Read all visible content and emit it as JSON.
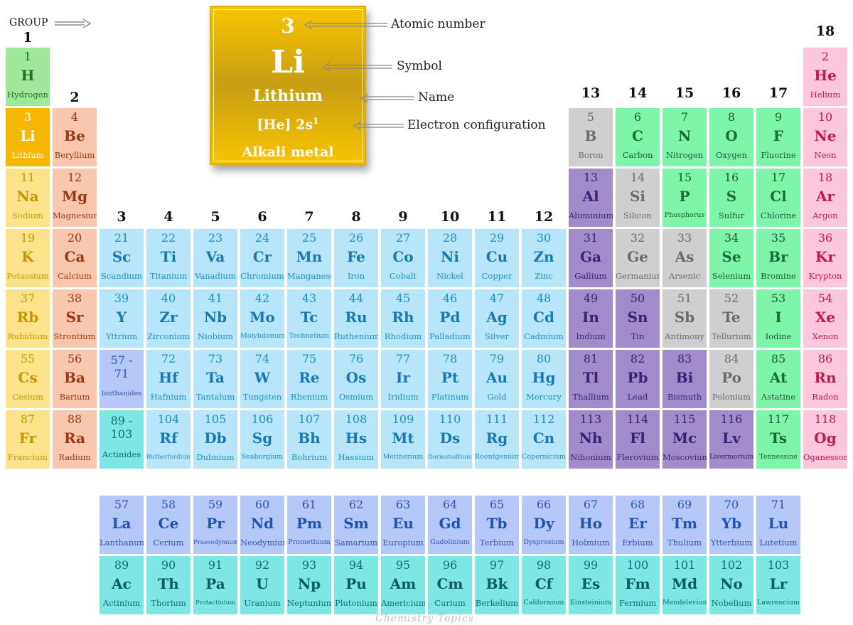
{
  "header": {
    "group_word": "GROUP",
    "groups": [
      "1",
      "2",
      "3",
      "4",
      "5",
      "6",
      "7",
      "8",
      "9",
      "10",
      "11",
      "12",
      "13",
      "14",
      "15",
      "16",
      "17",
      "18"
    ]
  },
  "legend": {
    "number": "3",
    "symbol": "Li",
    "name": "Lithium",
    "config_base": "[He] 2s",
    "config_sup": "1",
    "category": "Alkali metal",
    "callouts": {
      "atomic_number": "Atomic number",
      "symbol": "Symbol",
      "name": "Name",
      "electron_configuration": "Electron configuration"
    }
  },
  "watermark": "Chemistry Topics",
  "elements": [
    [
      "1",
      "H",
      "Hydrogen",
      1,
      1,
      "hydrogen"
    ],
    [
      "2",
      "He",
      "Helium",
      18,
      1,
      "noble"
    ],
    [
      "3",
      "Li",
      "Lithium",
      1,
      2,
      "lith-hl"
    ],
    [
      "4",
      "Be",
      "Beryllium",
      2,
      2,
      "alkaline"
    ],
    [
      "5",
      "B",
      "Boron",
      13,
      2,
      "metalloid"
    ],
    [
      "6",
      "C",
      "Carbon",
      14,
      2,
      "nonmetal"
    ],
    [
      "7",
      "N",
      "Nitrogen",
      15,
      2,
      "nonmetal"
    ],
    [
      "8",
      "O",
      "Oxygen",
      16,
      2,
      "nonmetal"
    ],
    [
      "9",
      "F",
      "Fluorine",
      17,
      2,
      "nonmetal"
    ],
    [
      "10",
      "Ne",
      "Neon",
      18,
      2,
      "noble"
    ],
    [
      "11",
      "Na",
      "Sodium",
      1,
      3,
      "alkali"
    ],
    [
      "12",
      "Mg",
      "Magnesium",
      2,
      3,
      "alkaline"
    ],
    [
      "13",
      "Al",
      "Aluminium",
      13,
      3,
      "post"
    ],
    [
      "14",
      "Si",
      "Silicon",
      14,
      3,
      "metalloid"
    ],
    [
      "15",
      "P",
      "Phosphorus",
      15,
      3,
      "nonmetal"
    ],
    [
      "16",
      "S",
      "Sulfur",
      16,
      3,
      "nonmetal"
    ],
    [
      "17",
      "Cl",
      "Chlorine",
      17,
      3,
      "nonmetal"
    ],
    [
      "18",
      "Ar",
      "Argon",
      18,
      3,
      "noble"
    ],
    [
      "19",
      "K",
      "Potassium",
      1,
      4,
      "alkali"
    ],
    [
      "20",
      "Ca",
      "Calcium",
      2,
      4,
      "alkaline"
    ],
    [
      "21",
      "Sc",
      "Scandium",
      3,
      4,
      "transition"
    ],
    [
      "22",
      "Ti",
      "Titanium",
      4,
      4,
      "transition"
    ],
    [
      "23",
      "Va",
      "Vanadium",
      5,
      4,
      "transition"
    ],
    [
      "24",
      "Cr",
      "Chromium",
      6,
      4,
      "transition"
    ],
    [
      "25",
      "Mn",
      "Manganese",
      7,
      4,
      "transition"
    ],
    [
      "26",
      "Fe",
      "Iron",
      8,
      4,
      "transition"
    ],
    [
      "27",
      "Co",
      "Cobalt",
      9,
      4,
      "transition"
    ],
    [
      "28",
      "Ni",
      "Nickel",
      10,
      4,
      "transition"
    ],
    [
      "29",
      "Cu",
      "Copper",
      11,
      4,
      "transition"
    ],
    [
      "30",
      "Zn",
      "Zinc",
      12,
      4,
      "transition"
    ],
    [
      "31",
      "Ga",
      "Gallium",
      13,
      4,
      "post"
    ],
    [
      "32",
      "Ge",
      "Germanium",
      14,
      4,
      "metalloid"
    ],
    [
      "33",
      "As",
      "Arsenic",
      15,
      4,
      "metalloid"
    ],
    [
      "34",
      "Se",
      "Selenium",
      16,
      4,
      "nonmetal"
    ],
    [
      "35",
      "Br",
      "Bromine",
      17,
      4,
      "nonmetal"
    ],
    [
      "36",
      "Kr",
      "Krypton",
      18,
      4,
      "noble"
    ],
    [
      "37",
      "Rb",
      "Rubidium",
      1,
      5,
      "alkali"
    ],
    [
      "38",
      "Sr",
      "Strontium",
      2,
      5,
      "alkaline"
    ],
    [
      "39",
      "Y",
      "Yttrium",
      3,
      5,
      "transition"
    ],
    [
      "40",
      "Zr",
      "Zirconium",
      4,
      5,
      "transition"
    ],
    [
      "41",
      "Nb",
      "Niobium",
      5,
      5,
      "transition"
    ],
    [
      "42",
      "Mo",
      "Molybdenum",
      6,
      5,
      "transition"
    ],
    [
      "43",
      "Tc",
      "Technetium",
      7,
      5,
      "transition"
    ],
    [
      "44",
      "Ru",
      "Ruthenium",
      8,
      5,
      "transition"
    ],
    [
      "45",
      "Rh",
      "Rhodium",
      9,
      5,
      "transition"
    ],
    [
      "46",
      "Pd",
      "Palladium",
      10,
      5,
      "transition"
    ],
    [
      "47",
      "Ag",
      "Silver",
      11,
      5,
      "transition"
    ],
    [
      "48",
      "Cd",
      "Cadmium",
      12,
      5,
      "transition"
    ],
    [
      "49",
      "In",
      "Indium",
      13,
      5,
      "post"
    ],
    [
      "50",
      "Sn",
      "Tin",
      14,
      5,
      "post"
    ],
    [
      "51",
      "Sb",
      "Antimony",
      15,
      5,
      "metalloid"
    ],
    [
      "52",
      "Te",
      "Tellurium",
      16,
      5,
      "metalloid"
    ],
    [
      "53",
      "I",
      "Iodine",
      17,
      5,
      "nonmetal"
    ],
    [
      "54",
      "Xe",
      "Xenon",
      18,
      5,
      "noble"
    ],
    [
      "55",
      "Cs",
      "Cesium",
      1,
      6,
      "alkali"
    ],
    [
      "56",
      "Ba",
      "Barium",
      2,
      6,
      "alkaline"
    ],
    [
      "57 - 71",
      "",
      "lanthanides",
      3,
      6,
      "lanthanide"
    ],
    [
      "72",
      "Hf",
      "Hafnium",
      4,
      6,
      "transition"
    ],
    [
      "73",
      "Ta",
      "Tantalum",
      5,
      6,
      "transition"
    ],
    [
      "74",
      "W",
      "Tungsten",
      6,
      6,
      "transition"
    ],
    [
      "75",
      "Re",
      "Rhenium",
      7,
      6,
      "transition"
    ],
    [
      "76",
      "Os",
      "Osmium",
      8,
      6,
      "transition"
    ],
    [
      "77",
      "Ir",
      "Iridium",
      9,
      6,
      "transition"
    ],
    [
      "78",
      "Pt",
      "Platinum",
      10,
      6,
      "transition"
    ],
    [
      "79",
      "Au",
      "Gold",
      11,
      6,
      "transition"
    ],
    [
      "80",
      "Hg",
      "Mercury",
      12,
      6,
      "transition"
    ],
    [
      "81",
      "Tl",
      "Thallium",
      13,
      6,
      "post"
    ],
    [
      "82",
      "Pb",
      "Lead",
      14,
      6,
      "post"
    ],
    [
      "83",
      "Bi",
      "Bismuth",
      15,
      6,
      "post"
    ],
    [
      "84",
      "Po",
      "Polonium",
      16,
      6,
      "metalloid"
    ],
    [
      "85",
      "At",
      "Astatine",
      17,
      6,
      "nonmetal"
    ],
    [
      "86",
      "Rn",
      "Radon",
      18,
      6,
      "noble"
    ],
    [
      "87",
      "Fr",
      "Francium",
      1,
      7,
      "alkali"
    ],
    [
      "88",
      "Ra",
      "Radium",
      2,
      7,
      "alkaline"
    ],
    [
      "89 - 103",
      "",
      "Actinides",
      3,
      7,
      "actinide"
    ],
    [
      "104",
      "Rf",
      "Rutherfordium",
      4,
      7,
      "transition"
    ],
    [
      "105",
      "Db",
      "Dubnium",
      5,
      7,
      "transition"
    ],
    [
      "106",
      "Sg",
      "Seaborgium",
      6,
      7,
      "transition"
    ],
    [
      "107",
      "Bh",
      "Bohrium",
      7,
      7,
      "transition"
    ],
    [
      "108",
      "Hs",
      "Hassium",
      8,
      7,
      "transition"
    ],
    [
      "109",
      "Mt",
      "Meitnerium",
      9,
      7,
      "transition"
    ],
    [
      "110",
      "Ds",
      "Darmstadtium",
      10,
      7,
      "transition"
    ],
    [
      "111",
      "Rg",
      "Roentgenium",
      11,
      7,
      "transition"
    ],
    [
      "112",
      "Cn",
      "Copernicium",
      12,
      7,
      "transition"
    ],
    [
      "113",
      "Nh",
      "Nihonium",
      13,
      7,
      "post"
    ],
    [
      "114",
      "Fl",
      "Flerovium",
      14,
      7,
      "post"
    ],
    [
      "115",
      "Mc",
      "Moscovium",
      15,
      7,
      "post"
    ],
    [
      "116",
      "Lv",
      "Livermorium",
      16,
      7,
      "post"
    ],
    [
      "117",
      "Ts",
      "Tennessine",
      17,
      7,
      "nonmetal"
    ],
    [
      "118",
      "Og",
      "Oganesson",
      18,
      7,
      "noble"
    ],
    [
      "57",
      "La",
      "Lanthanum",
      3,
      9,
      "lanthanide"
    ],
    [
      "58",
      "Ce",
      "Cerium",
      4,
      9,
      "lanthanide"
    ],
    [
      "59",
      "Pr",
      "Praseodymium",
      5,
      9,
      "lanthanide"
    ],
    [
      "60",
      "Nd",
      "Neodymium",
      6,
      9,
      "lanthanide"
    ],
    [
      "61",
      "Pm",
      "Promethium",
      7,
      9,
      "lanthanide"
    ],
    [
      "62",
      "Sm",
      "Samarium",
      8,
      9,
      "lanthanide"
    ],
    [
      "63",
      "Eu",
      "Europium",
      9,
      9,
      "lanthanide"
    ],
    [
      "64",
      "Gd",
      "Gadolinium",
      10,
      9,
      "lanthanide"
    ],
    [
      "65",
      "Tb",
      "Terbium",
      11,
      9,
      "lanthanide"
    ],
    [
      "66",
      "Dy",
      "Dysprosium",
      12,
      9,
      "lanthanide"
    ],
    [
      "67",
      "Ho",
      "Holmium",
      13,
      9,
      "lanthanide"
    ],
    [
      "68",
      "Er",
      "Erbium",
      14,
      9,
      "lanthanide"
    ],
    [
      "69",
      "Tm",
      "Thulium",
      15,
      9,
      "lanthanide"
    ],
    [
      "70",
      "Yb",
      "Ytterbium",
      16,
      9,
      "lanthanide"
    ],
    [
      "71",
      "Lu",
      "Lutetium",
      17,
      9,
      "lanthanide"
    ],
    [
      "89",
      "Ac",
      "Actinium",
      3,
      10,
      "actinide"
    ],
    [
      "90",
      "Th",
      "Thorium",
      4,
      10,
      "actinide"
    ],
    [
      "91",
      "Pa",
      "Protactinium",
      5,
      10,
      "actinide"
    ],
    [
      "92",
      "U",
      "Uranium",
      6,
      10,
      "actinide"
    ],
    [
      "93",
      "Np",
      "Neptunium",
      7,
      10,
      "actinide"
    ],
    [
      "94",
      "Pu",
      "Plutonium",
      8,
      10,
      "actinide"
    ],
    [
      "95",
      "Am",
      "Americium",
      9,
      10,
      "actinide"
    ],
    [
      "96",
      "Cm",
      "Curium",
      10,
      10,
      "actinide"
    ],
    [
      "97",
      "Bk",
      "Berkelium",
      11,
      10,
      "actinide"
    ],
    [
      "98",
      "Cf",
      "Californium",
      12,
      10,
      "actinide"
    ],
    [
      "99",
      "Es",
      "Einsteinium",
      13,
      10,
      "actinide"
    ],
    [
      "100",
      "Fm",
      "Fermium",
      14,
      10,
      "actinide"
    ],
    [
      "101",
      "Md",
      "Mendelevium",
      15,
      10,
      "actinide"
    ],
    [
      "102",
      "No",
      "Nobelium",
      16,
      10,
      "actinide"
    ],
    [
      "103",
      "Lr",
      "Lawrencium",
      17,
      10,
      "actinide"
    ]
  ]
}
